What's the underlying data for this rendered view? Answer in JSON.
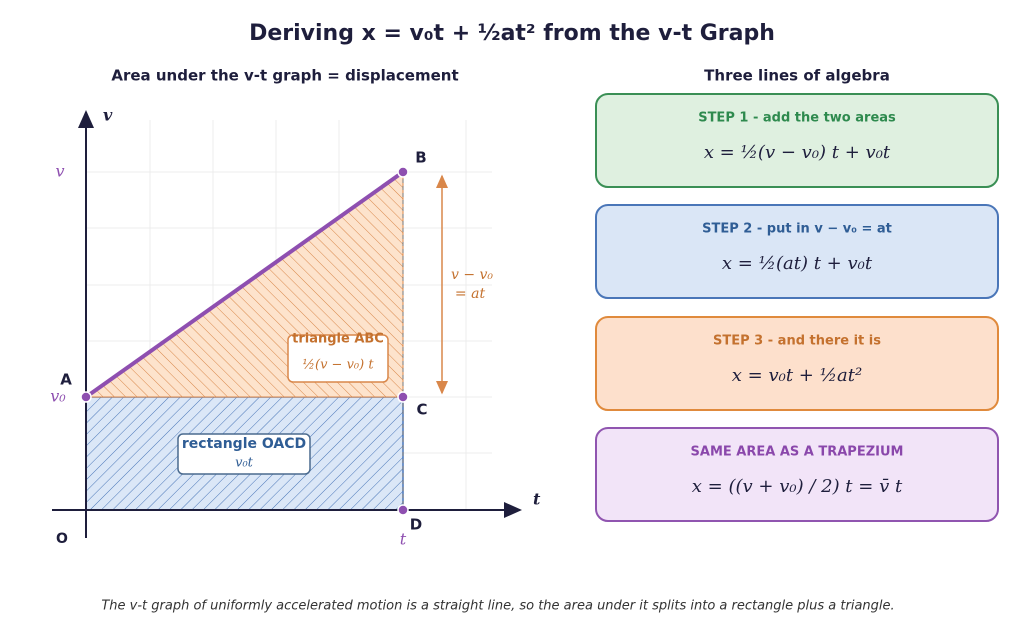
{
  "title": "Deriving x = v₀t + ½at² from the v-t Graph",
  "left_panel": {
    "subtitle": "Area under the v-t graph = displacement",
    "axis_y": "v",
    "axis_x": "t",
    "tick_v": "v",
    "tick_v0": "v₀",
    "tick_t": "t",
    "origin": "O",
    "points": [
      "A",
      "B",
      "C",
      "D"
    ],
    "rise_label": [
      "v − v₀",
      "= at"
    ],
    "triangle": {
      "name": "triangle ABC",
      "area": "½(v − v₀) t"
    },
    "rectangle": {
      "name": "rectangle OACD",
      "area": "v₀t"
    }
  },
  "right_panel": {
    "subtitle": "Three lines of algebra",
    "steps": [
      {
        "label": "STEP 1  -  add the two areas",
        "formula": "x = ½(v − v₀) t  +  v₀t"
      },
      {
        "label": "STEP 2  -  put in v − v₀ = at",
        "formula": "x = ½(at) t + v₀t"
      },
      {
        "label": "STEP 3  -  and there it is",
        "formula": "x = v₀t + ½at²"
      },
      {
        "label": "SAME AREA AS A TRAPEZIUM",
        "formula": "x = ((v + v₀) / 2) t = v̄ t"
      }
    ]
  },
  "footer": "The v-t graph of uniformly accelerated motion is a straight line, so the area under it splits into a rectangle plus a triangle."
}
